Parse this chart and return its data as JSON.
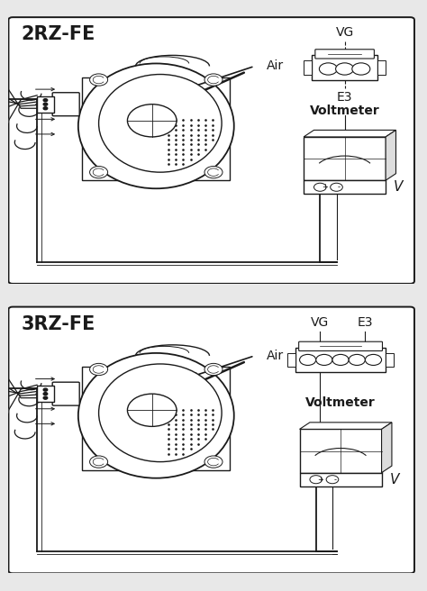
{
  "panels": [
    {
      "title": "2RZ-FE",
      "is_3rz": false,
      "vg_label": "VG",
      "e3_label": "E3",
      "voltmeter_label": "Voltmeter",
      "air_label": "Air",
      "v_label": "V"
    },
    {
      "title": "3RZ-FE",
      "is_3rz": true,
      "vg_label": "VG",
      "e3_label": "E3",
      "voltmeter_label": "Voltmeter",
      "air_label": "Air",
      "v_label": "V"
    }
  ],
  "bg_color": "#e8e8e8",
  "line_color": "#1a1a1a",
  "white": "#ffffff",
  "title_fontsize": 15,
  "label_fontsize": 9,
  "voltmeter_fontsize": 10
}
